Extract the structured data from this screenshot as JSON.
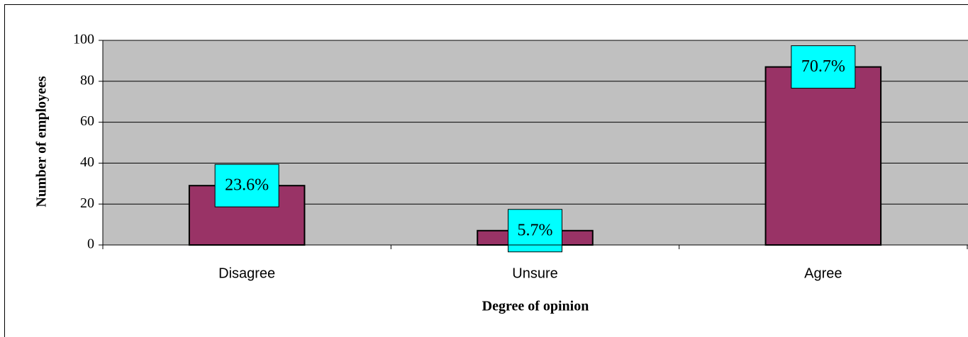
{
  "chart_data": {
    "type": "bar",
    "categories": [
      "Disagree",
      "Unsure",
      "Agree"
    ],
    "values": [
      29,
      7,
      87
    ],
    "value_labels": [
      "23.6%",
      "5.7%",
      "70.7%"
    ],
    "color": "#993366",
    "label_color": "#00ffff",
    "plot_background": "#c0c0c0",
    "xlabel": "Degree of opinion",
    "ylabel": "Number of employees",
    "ylim": [
      0,
      100
    ],
    "yticks": [
      0,
      20,
      40,
      60,
      80,
      100
    ],
    "grid": true
  }
}
